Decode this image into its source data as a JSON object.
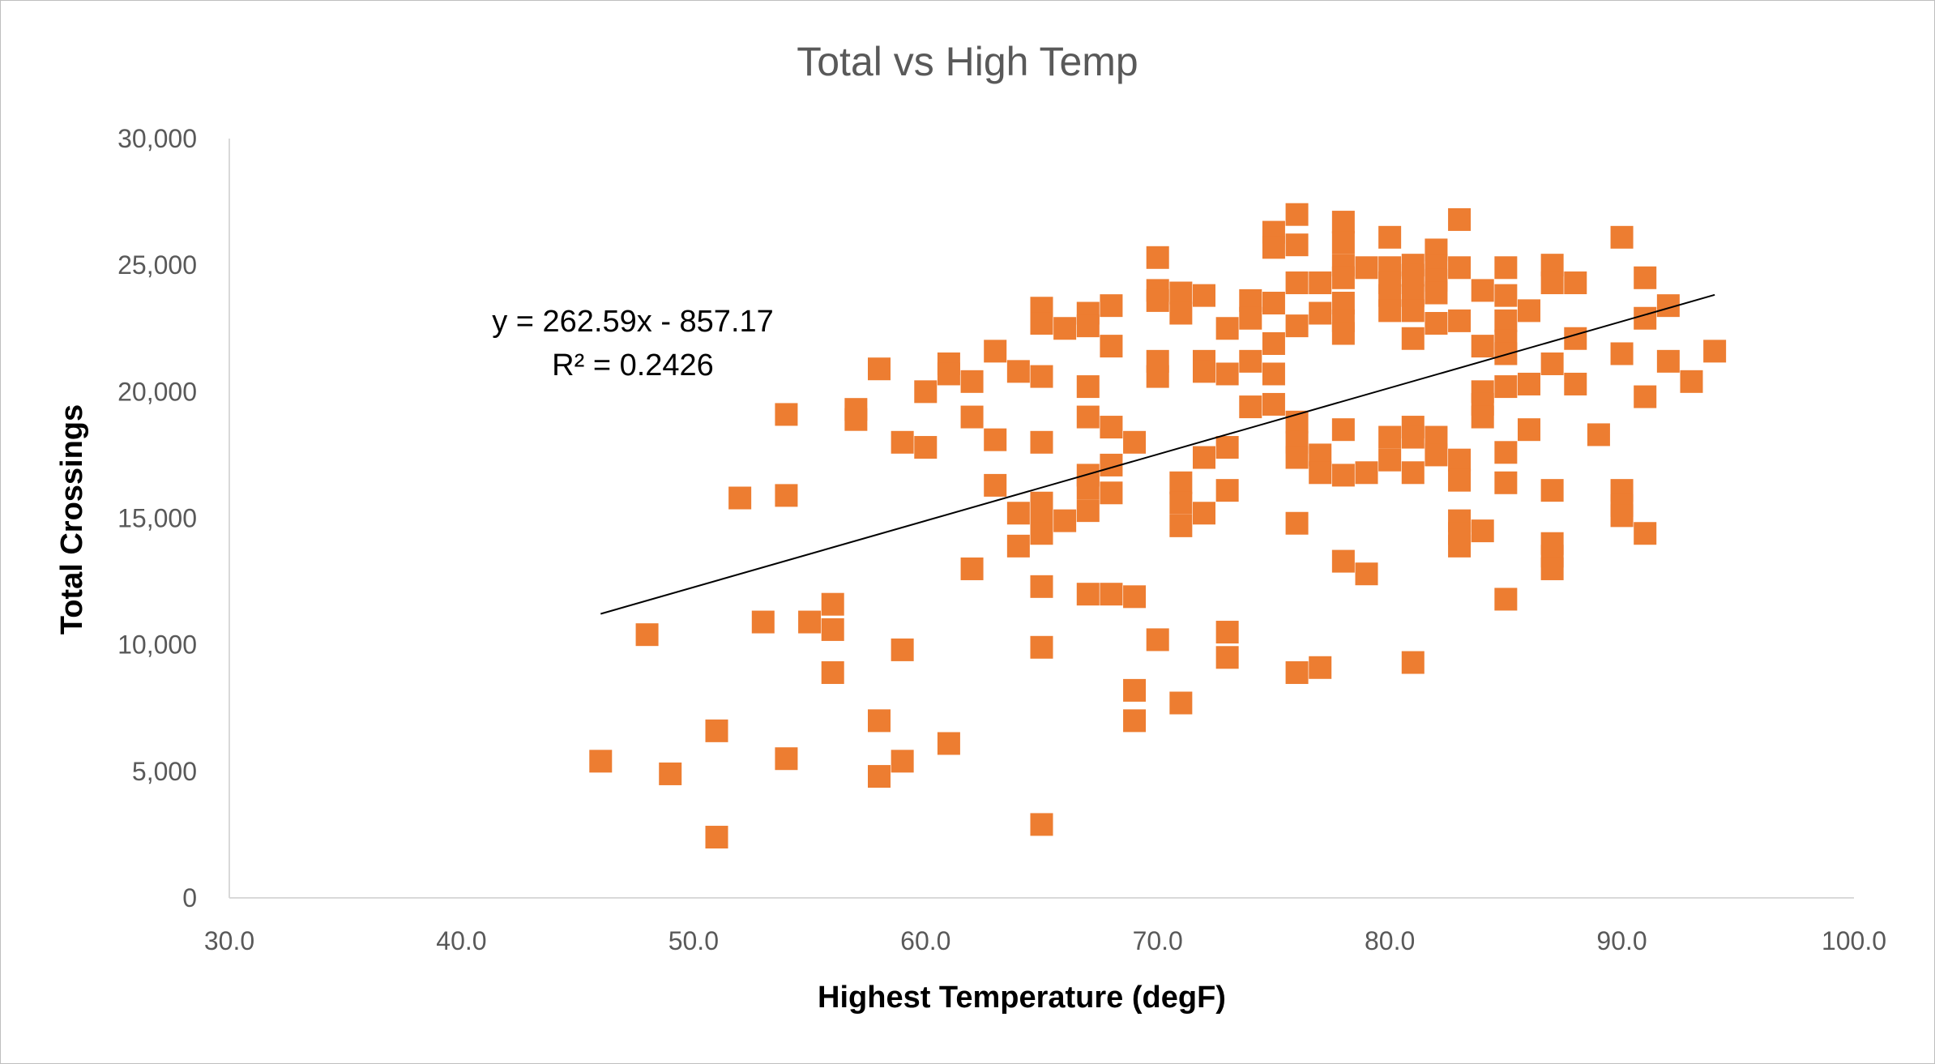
{
  "chart_data": {
    "type": "scatter",
    "title": "Total vs High Temp",
    "xlabel": "Highest Temperature (degF)",
    "ylabel": "Total Crossings",
    "xlim": [
      30,
      100
    ],
    "ylim": [
      0,
      30000
    ],
    "x_ticks": [
      "30.0",
      "40.0",
      "50.0",
      "60.0",
      "70.0",
      "80.0",
      "90.0",
      "100.0"
    ],
    "y_ticks": [
      "0",
      "5,000",
      "10,000",
      "15,000",
      "20,000",
      "25,000",
      "30,000"
    ],
    "grid": false,
    "legend": "none",
    "marker": "square",
    "series_color": "#ED7D31",
    "trendline": {
      "type": "linear",
      "slope": 262.59,
      "intercept": -857.17,
      "x_range": [
        46,
        94
      ],
      "color": "#000000",
      "equation": "y = 262.59x - 857.17",
      "r_squared": "R² = 0.2426"
    },
    "points": [
      [
        46,
        5400
      ],
      [
        48,
        10400
      ],
      [
        49,
        4900
      ],
      [
        51,
        6600
      ],
      [
        51,
        2400
      ],
      [
        52,
        15800
      ],
      [
        53,
        10900
      ],
      [
        54,
        19100
      ],
      [
        54,
        15900
      ],
      [
        54,
        5500
      ],
      [
        55,
        10900
      ],
      [
        56,
        11600
      ],
      [
        56,
        10600
      ],
      [
        56,
        8900
      ],
      [
        57,
        19300
      ],
      [
        57,
        18900
      ],
      [
        58,
        20900
      ],
      [
        58,
        7000
      ],
      [
        58,
        4800
      ],
      [
        59,
        18000
      ],
      [
        59,
        9800
      ],
      [
        59,
        5400
      ],
      [
        60,
        20000
      ],
      [
        60,
        17800
      ],
      [
        61,
        21100
      ],
      [
        61,
        20700
      ],
      [
        61,
        6100
      ],
      [
        62,
        20400
      ],
      [
        62,
        19000
      ],
      [
        62,
        13000
      ],
      [
        63,
        21600
      ],
      [
        63,
        18100
      ],
      [
        63,
        16300
      ],
      [
        64,
        20800
      ],
      [
        64,
        15200
      ],
      [
        64,
        13900
      ],
      [
        65,
        23300
      ],
      [
        65,
        22700
      ],
      [
        65,
        20600
      ],
      [
        65,
        18000
      ],
      [
        65,
        15600
      ],
      [
        65,
        15000
      ],
      [
        65,
        14400
      ],
      [
        65,
        12300
      ],
      [
        65,
        9900
      ],
      [
        65,
        2900
      ],
      [
        66,
        22500
      ],
      [
        66,
        14900
      ],
      [
        67,
        23100
      ],
      [
        67,
        22600
      ],
      [
        67,
        20200
      ],
      [
        67,
        19000
      ],
      [
        67,
        16700
      ],
      [
        67,
        16200
      ],
      [
        67,
        15300
      ],
      [
        67,
        12000
      ],
      [
        68,
        23400
      ],
      [
        68,
        21800
      ],
      [
        68,
        18600
      ],
      [
        68,
        17100
      ],
      [
        68,
        16000
      ],
      [
        68,
        12000
      ],
      [
        69,
        18000
      ],
      [
        69,
        11900
      ],
      [
        69,
        8200
      ],
      [
        69,
        7000
      ],
      [
        70,
        25300
      ],
      [
        70,
        24000
      ],
      [
        70,
        23600
      ],
      [
        70,
        21200
      ],
      [
        70,
        20600
      ],
      [
        70,
        10200
      ],
      [
        71,
        23900
      ],
      [
        71,
        23100
      ],
      [
        71,
        16400
      ],
      [
        71,
        15600
      ],
      [
        71,
        14700
      ],
      [
        71,
        7700
      ],
      [
        72,
        23800
      ],
      [
        72,
        21200
      ],
      [
        72,
        20800
      ],
      [
        72,
        17400
      ],
      [
        72,
        15200
      ],
      [
        73,
        22500
      ],
      [
        73,
        20700
      ],
      [
        73,
        17800
      ],
      [
        73,
        16100
      ],
      [
        73,
        10500
      ],
      [
        73,
        9500
      ],
      [
        74,
        23600
      ],
      [
        74,
        22900
      ],
      [
        74,
        21200
      ],
      [
        74,
        19400
      ],
      [
        75,
        26300
      ],
      [
        75,
        25700
      ],
      [
        75,
        23500
      ],
      [
        75,
        21900
      ],
      [
        75,
        20700
      ],
      [
        75,
        19500
      ],
      [
        76,
        27000
      ],
      [
        76,
        25800
      ],
      [
        76,
        24300
      ],
      [
        76,
        22600
      ],
      [
        76,
        18800
      ],
      [
        76,
        18000
      ],
      [
        76,
        17400
      ],
      [
        76,
        14800
      ],
      [
        76,
        8900
      ],
      [
        77,
        24300
      ],
      [
        77,
        23100
      ],
      [
        77,
        17500
      ],
      [
        77,
        16800
      ],
      [
        77,
        9100
      ],
      [
        78,
        26700
      ],
      [
        78,
        25900
      ],
      [
        78,
        25000
      ],
      [
        78,
        24500
      ],
      [
        78,
        23500
      ],
      [
        78,
        22800
      ],
      [
        78,
        22300
      ],
      [
        78,
        18500
      ],
      [
        78,
        16700
      ],
      [
        78,
        13300
      ],
      [
        79,
        24900
      ],
      [
        79,
        16800
      ],
      [
        79,
        12800
      ],
      [
        80,
        26100
      ],
      [
        80,
        24900
      ],
      [
        80,
        24300
      ],
      [
        80,
        23800
      ],
      [
        80,
        23200
      ],
      [
        80,
        18200
      ],
      [
        80,
        17300
      ],
      [
        81,
        25000
      ],
      [
        81,
        24600
      ],
      [
        81,
        23800
      ],
      [
        81,
        23200
      ],
      [
        81,
        22100
      ],
      [
        81,
        18600
      ],
      [
        81,
        18200
      ],
      [
        81,
        16800
      ],
      [
        81,
        9300
      ],
      [
        82,
        25600
      ],
      [
        82,
        25000
      ],
      [
        82,
        24400
      ],
      [
        82,
        23900
      ],
      [
        82,
        22700
      ],
      [
        82,
        18200
      ],
      [
        82,
        17500
      ],
      [
        83,
        26800
      ],
      [
        83,
        24900
      ],
      [
        83,
        22800
      ],
      [
        83,
        17300
      ],
      [
        83,
        16500
      ],
      [
        83,
        14900
      ],
      [
        83,
        14400
      ],
      [
        83,
        13900
      ],
      [
        84,
        24000
      ],
      [
        84,
        21800
      ],
      [
        84,
        20000
      ],
      [
        84,
        19500
      ],
      [
        84,
        19000
      ],
      [
        84,
        14500
      ],
      [
        85,
        24900
      ],
      [
        85,
        23800
      ],
      [
        85,
        22800
      ],
      [
        85,
        22000
      ],
      [
        85,
        21500
      ],
      [
        85,
        20200
      ],
      [
        85,
        17600
      ],
      [
        85,
        16400
      ],
      [
        85,
        11800
      ],
      [
        86,
        23200
      ],
      [
        86,
        20300
      ],
      [
        86,
        18500
      ],
      [
        87,
        25000
      ],
      [
        87,
        24300
      ],
      [
        87,
        21100
      ],
      [
        87,
        16100
      ],
      [
        87,
        14000
      ],
      [
        87,
        13500
      ],
      [
        87,
        13000
      ],
      [
        88,
        24300
      ],
      [
        88,
        22100
      ],
      [
        88,
        20300
      ],
      [
        89,
        18300
      ],
      [
        90,
        26100
      ],
      [
        90,
        21500
      ],
      [
        90,
        16100
      ],
      [
        90,
        15500
      ],
      [
        90,
        15100
      ],
      [
        91,
        24500
      ],
      [
        91,
        22900
      ],
      [
        91,
        19800
      ],
      [
        91,
        14400
      ],
      [
        92,
        23400
      ],
      [
        92,
        21200
      ],
      [
        93,
        20400
      ],
      [
        94,
        21600
      ]
    ]
  }
}
